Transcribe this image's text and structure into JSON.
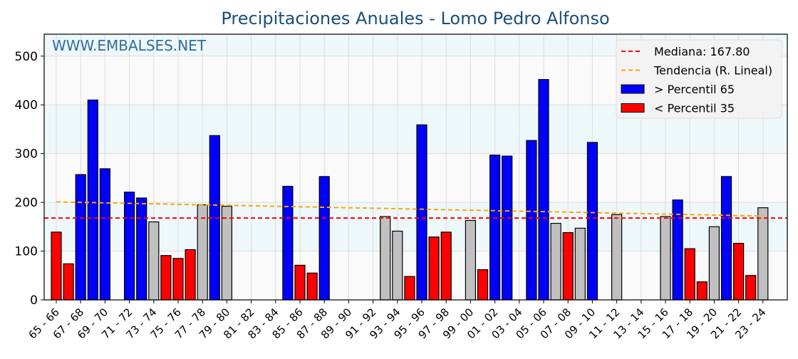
{
  "chart_data": {
    "type": "bar",
    "title": "Precipitaciones Anuales - Lomo Pedro Alfonso",
    "watermark": "WWW.EMBALSES.NET",
    "xlabel": "",
    "ylabel": "",
    "ylim": [
      0,
      545
    ],
    "yticks": [
      0,
      100,
      200,
      300,
      400,
      500
    ],
    "grid": true,
    "legend_position": "top-right",
    "categories": [
      "65 - 66",
      "66 - 67",
      "67 - 68",
      "68 - 69",
      "69 - 70",
      "70 - 71",
      "71 - 72",
      "72 - 73",
      "73 - 74",
      "74 - 75",
      "75 - 76",
      "76 - 77",
      "77 - 78",
      "78 - 79",
      "79 - 80",
      "80 - 81",
      "81 - 82",
      "82 - 83",
      "83 - 84",
      "84 - 85",
      "85 - 86",
      "86 - 87",
      "87 - 88",
      "88 - 89",
      "89 - 90",
      "90 - 91",
      "91 - 92",
      "92 - 93",
      "93 - 94",
      "94 - 95",
      "95 - 96",
      "96 - 97",
      "97 - 98",
      "98 - 99",
      "99 - 00",
      "00 - 01",
      "01 - 02",
      "02 - 03",
      "03 - 04",
      "04 - 05",
      "05 - 06",
      "06 - 07",
      "07 - 08",
      "08 - 09",
      "09 - 10",
      "10 - 11",
      "11 - 12",
      "12 - 13",
      "13 - 14",
      "14 - 15",
      "15 - 16",
      "16 - 17",
      "17 - 18",
      "18 - 19",
      "19 - 20",
      "20 - 21",
      "21 - 22",
      "22 - 23",
      "23 - 24"
    ],
    "values": [
      139,
      74,
      257,
      410,
      269,
      null,
      221,
      209,
      160,
      91,
      85,
      103,
      195,
      337,
      192,
      null,
      null,
      null,
      null,
      233,
      71,
      55,
      253,
      null,
      null,
      null,
      null,
      171,
      141,
      48,
      359,
      129,
      139,
      null,
      163,
      62,
      297,
      295,
      null,
      327,
      452,
      157,
      138,
      147,
      323,
      null,
      175,
      null,
      null,
      null,
      171,
      205,
      105,
      37,
      150,
      253,
      116,
      50,
      189
    ],
    "classes": [
      "low",
      "low",
      "high",
      "high",
      "high",
      null,
      "high",
      "high",
      "mid",
      "low",
      "low",
      "low",
      "mid",
      "high",
      "mid",
      null,
      null,
      null,
      null,
      "high",
      "low",
      "low",
      "high",
      null,
      null,
      null,
      null,
      "mid",
      "mid",
      "low",
      "high",
      "low",
      "low",
      null,
      "mid",
      "low",
      "high",
      "high",
      null,
      "high",
      "high",
      "mid",
      "low",
      "mid",
      "high",
      null,
      "mid",
      null,
      null,
      null,
      "mid",
      "high",
      "low",
      "low",
      "mid",
      "high",
      "low",
      "low",
      "mid"
    ],
    "median": 167.8,
    "trend": {
      "start": 201,
      "end": 172
    },
    "legend": [
      {
        "label": "Mediana: 167.80",
        "kind": "median"
      },
      {
        "label": "Tendencia (R. Lineal)",
        "kind": "trend"
      },
      {
        "label": " > Percentil 65",
        "kind": "high"
      },
      {
        "label": " < Percentil 35",
        "kind": "low"
      }
    ],
    "colors": {
      "high": "#0000ff",
      "low": "#ff0000",
      "mid": "#c0c0c0",
      "median": "#ff0000",
      "trend": "#ffa500",
      "title": "#1a4f7a",
      "watermark": "#2e6e9e"
    }
  }
}
